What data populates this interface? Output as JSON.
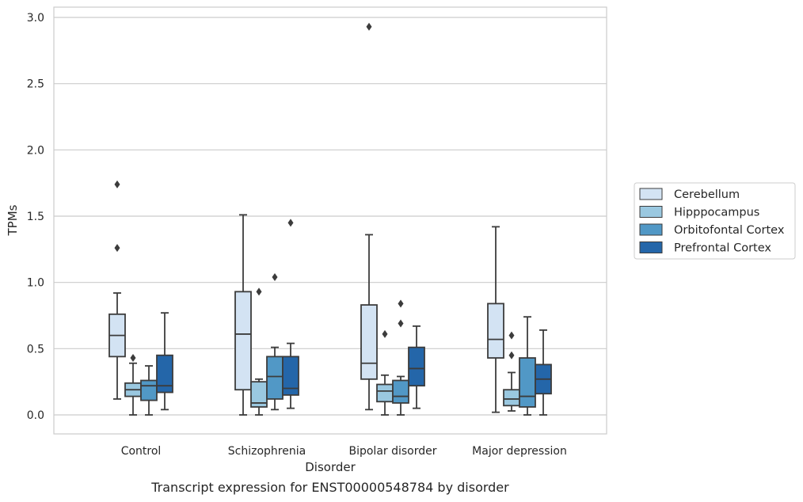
{
  "chart_data": {
    "type": "box",
    "xlabel": "Disorder",
    "ylabel": "TPMs",
    "ylim": [
      -0.14,
      3.08
    ],
    "yticks": [
      0.0,
      0.5,
      1.0,
      1.5,
      2.0,
      2.5,
      3.0
    ],
    "ytick_labels": [
      "0.0",
      "0.5",
      "1.0",
      "1.5",
      "2.0",
      "2.5",
      "3.0"
    ],
    "grid": "horizontal",
    "legend_position": "right",
    "categories": [
      "Control",
      "Schizophrenia",
      "Bipolar disorder",
      "Major depression"
    ],
    "series": [
      {
        "name": "Cerebellum",
        "color": "#d3e3f3",
        "boxes": [
          {
            "whislo": 0.12,
            "q1": 0.44,
            "med": 0.6,
            "q3": 0.76,
            "whishi": 0.92,
            "fliers": [
              1.26,
              1.74
            ]
          },
          {
            "whislo": 0.0,
            "q1": 0.19,
            "med": 0.61,
            "q3": 0.93,
            "whishi": 1.51,
            "fliers": []
          },
          {
            "whislo": 0.04,
            "q1": 0.27,
            "med": 0.39,
            "q3": 0.83,
            "whishi": 1.36,
            "fliers": [
              2.93
            ]
          },
          {
            "whislo": 0.02,
            "q1": 0.43,
            "med": 0.57,
            "q3": 0.84,
            "whishi": 1.42,
            "fliers": []
          }
        ]
      },
      {
        "name": "Hipppocampus",
        "color": "#9ac8e0",
        "boxes": [
          {
            "whislo": 0.0,
            "q1": 0.14,
            "med": 0.19,
            "q3": 0.24,
            "whishi": 0.39,
            "fliers": [
              0.43
            ]
          },
          {
            "whislo": 0.0,
            "q1": 0.06,
            "med": 0.09,
            "q3": 0.25,
            "whishi": 0.27,
            "fliers": [
              0.93
            ]
          },
          {
            "whislo": 0.0,
            "q1": 0.1,
            "med": 0.18,
            "q3": 0.23,
            "whishi": 0.3,
            "fliers": [
              0.61
            ]
          },
          {
            "whislo": 0.03,
            "q1": 0.07,
            "med": 0.12,
            "q3": 0.19,
            "whishi": 0.32,
            "fliers": [
              0.45,
              0.6
            ]
          }
        ]
      },
      {
        "name": "Orbitofontal Cortex",
        "color": "#5198c6",
        "boxes": [
          {
            "whislo": 0.0,
            "q1": 0.11,
            "med": 0.22,
            "q3": 0.26,
            "whishi": 0.37,
            "fliers": []
          },
          {
            "whislo": 0.04,
            "q1": 0.12,
            "med": 0.29,
            "q3": 0.44,
            "whishi": 0.51,
            "fliers": [
              1.04
            ]
          },
          {
            "whislo": 0.0,
            "q1": 0.09,
            "med": 0.14,
            "q3": 0.26,
            "whishi": 0.29,
            "fliers": [
              0.69,
              0.84
            ]
          },
          {
            "whislo": 0.0,
            "q1": 0.06,
            "med": 0.14,
            "q3": 0.43,
            "whishi": 0.74,
            "fliers": []
          }
        ]
      },
      {
        "name": "Prefrontal Cortex",
        "color": "#2466a9",
        "boxes": [
          {
            "whislo": 0.04,
            "q1": 0.17,
            "med": 0.22,
            "q3": 0.45,
            "whishi": 0.77,
            "fliers": []
          },
          {
            "whislo": 0.05,
            "q1": 0.15,
            "med": 0.2,
            "q3": 0.44,
            "whishi": 0.54,
            "fliers": [
              1.45
            ]
          },
          {
            "whislo": 0.05,
            "q1": 0.22,
            "med": 0.35,
            "q3": 0.51,
            "whishi": 0.67,
            "fliers": []
          },
          {
            "whislo": 0.0,
            "q1": 0.16,
            "med": 0.27,
            "q3": 0.38,
            "whishi": 0.64,
            "fliers": []
          }
        ]
      }
    ],
    "caption": "Transcript expression for ENST00000548784 by disorder"
  }
}
